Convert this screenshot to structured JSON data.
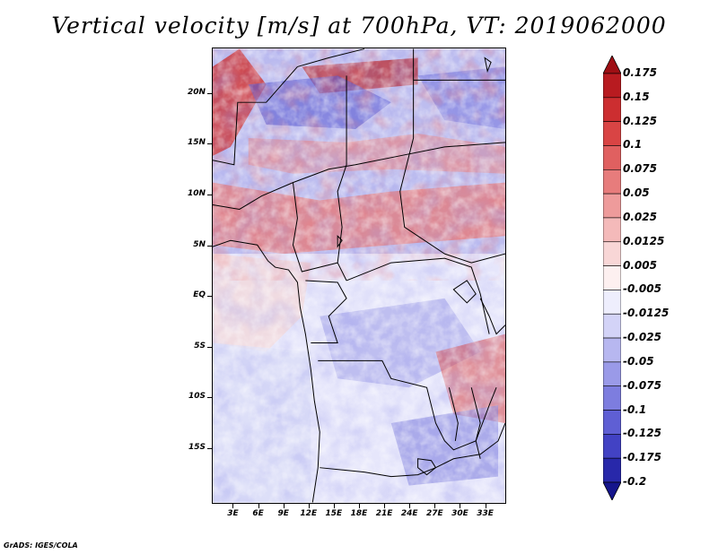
{
  "title": "Vertical velocity [m/s] at 700hPa, VT: 2019062000",
  "footer": "GrADS: IGES/COLA",
  "map": {
    "lat_labels": [
      "20N",
      "15N",
      "10N",
      "5N",
      "EQ",
      "5S",
      "10S",
      "15S"
    ],
    "lat_values": [
      20,
      15,
      10,
      5,
      0,
      -5,
      -10,
      -15
    ],
    "lon_labels": [
      "3E",
      "6E",
      "9E",
      "12E",
      "15E",
      "18E",
      "21E",
      "24E",
      "27E",
      "30E",
      "33E"
    ],
    "lon_values": [
      3,
      6,
      9,
      12,
      15,
      18,
      21,
      24,
      27,
      30,
      33
    ]
  },
  "colorbar": {
    "labels": [
      "0.175",
      "0.15",
      "0.125",
      "0.1",
      "0.075",
      "0.05",
      "0.025",
      "0.0125",
      "0.005",
      "-0.005",
      "-0.0125",
      "-0.025",
      "-0.05",
      "-0.075",
      "-0.1",
      "-0.125",
      "-0.175",
      "-0.2"
    ],
    "colors": [
      "#9e0f14",
      "#b81b20",
      "#cc2e30",
      "#d94444",
      "#e06060",
      "#e77c7c",
      "#ee9b9b",
      "#f4baba",
      "#f8d6d6",
      "#fdf0f0",
      "#eeeefd",
      "#d3d3f7",
      "#b7b7f0",
      "#9a9ae8",
      "#7d7ddf",
      "#5f5fd4",
      "#4242c4",
      "#2828aa",
      "#15158c"
    ]
  }
}
